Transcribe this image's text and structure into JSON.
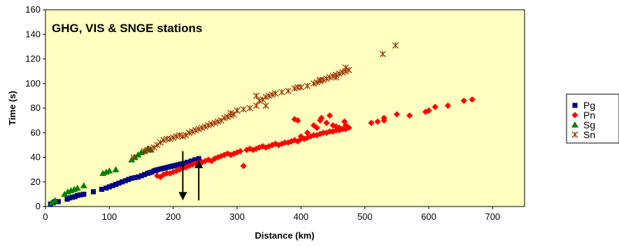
{
  "chart_data": {
    "type": "scatter",
    "title": "GHG, VIS  & SNGE stations",
    "xlabel": "Distance (km)",
    "ylabel": "Time (s)",
    "xlim": [
      0,
      750
    ],
    "ylim": [
      0,
      160
    ],
    "xticks": [
      0,
      100,
      200,
      300,
      400,
      500,
      600,
      700
    ],
    "yticks": [
      0,
      20,
      40,
      60,
      80,
      100,
      120,
      140,
      160
    ],
    "grid": false,
    "legend_position": "right",
    "plot_background": "#ffffc0",
    "series": [
      {
        "name": "Pg",
        "marker": "square",
        "color": "#000080",
        "points": [
          [
            8,
            2
          ],
          [
            12,
            3
          ],
          [
            15,
            4
          ],
          [
            20,
            4
          ],
          [
            34,
            6
          ],
          [
            38,
            7
          ],
          [
            42,
            7.5
          ],
          [
            46,
            8
          ],
          [
            50,
            9
          ],
          [
            55,
            9.5
          ],
          [
            60,
            10
          ],
          [
            75,
            12
          ],
          [
            88,
            14
          ],
          [
            95,
            15
          ],
          [
            100,
            16
          ],
          [
            105,
            17
          ],
          [
            110,
            18
          ],
          [
            115,
            19
          ],
          [
            120,
            20
          ],
          [
            125,
            21
          ],
          [
            130,
            22
          ],
          [
            135,
            23
          ],
          [
            140,
            23.5
          ],
          [
            145,
            24
          ],
          [
            150,
            25
          ],
          [
            155,
            26
          ],
          [
            160,
            27
          ],
          [
            163,
            27.5
          ],
          [
            166,
            28
          ],
          [
            170,
            29
          ],
          [
            173,
            29.5
          ],
          [
            176,
            30
          ],
          [
            180,
            30.5
          ],
          [
            184,
            31
          ],
          [
            188,
            31.5
          ],
          [
            192,
            32
          ],
          [
            196,
            32.5
          ],
          [
            200,
            33
          ],
          [
            204,
            33.5
          ],
          [
            208,
            34
          ],
          [
            212,
            34.5
          ],
          [
            216,
            35
          ],
          [
            222,
            36
          ],
          [
            228,
            37
          ],
          [
            234,
            38
          ],
          [
            240,
            39
          ]
        ]
      },
      {
        "name": "Pn",
        "marker": "diamond",
        "color": "#ff0000",
        "points": [
          [
            175,
            25
          ],
          [
            180,
            24
          ],
          [
            185,
            26
          ],
          [
            190,
            27
          ],
          [
            195,
            27
          ],
          [
            200,
            28
          ],
          [
            205,
            29
          ],
          [
            210,
            30
          ],
          [
            215,
            31
          ],
          [
            220,
            32
          ],
          [
            225,
            33
          ],
          [
            230,
            34
          ],
          [
            235,
            35
          ],
          [
            240,
            36
          ],
          [
            245,
            36
          ],
          [
            250,
            37
          ],
          [
            255,
            38
          ],
          [
            260,
            37
          ],
          [
            265,
            39
          ],
          [
            270,
            40
          ],
          [
            275,
            41
          ],
          [
            280,
            42
          ],
          [
            285,
            43
          ],
          [
            290,
            42
          ],
          [
            295,
            43
          ],
          [
            300,
            44
          ],
          [
            305,
            45
          ],
          [
            310,
            33
          ],
          [
            315,
            46
          ],
          [
            320,
            47
          ],
          [
            325,
            46
          ],
          [
            330,
            47
          ],
          [
            335,
            48
          ],
          [
            340,
            49
          ],
          [
            345,
            48
          ],
          [
            350,
            49
          ],
          [
            355,
            50
          ],
          [
            360,
            51
          ],
          [
            365,
            50
          ],
          [
            370,
            51
          ],
          [
            375,
            52
          ],
          [
            380,
            52
          ],
          [
            385,
            53
          ],
          [
            390,
            54
          ],
          [
            395,
            53
          ],
          [
            400,
            55
          ],
          [
            405,
            55
          ],
          [
            410,
            56
          ],
          [
            415,
            57
          ],
          [
            420,
            58
          ],
          [
            425,
            58
          ],
          [
            430,
            59
          ],
          [
            435,
            60
          ],
          [
            440,
            60
          ],
          [
            445,
            61
          ],
          [
            450,
            61
          ],
          [
            455,
            62
          ],
          [
            460,
            62
          ],
          [
            465,
            63
          ],
          [
            470,
            63
          ],
          [
            475,
            64
          ],
          [
            390,
            71
          ],
          [
            395,
            70
          ],
          [
            400,
            57
          ],
          [
            410,
            60
          ],
          [
            420,
            66
          ],
          [
            425,
            64
          ],
          [
            430,
            70
          ],
          [
            432,
            72
          ],
          [
            440,
            68
          ],
          [
            445,
            74
          ],
          [
            450,
            66
          ],
          [
            455,
            65
          ],
          [
            460,
            64
          ],
          [
            468,
            69
          ],
          [
            470,
            66
          ],
          [
            510,
            68
          ],
          [
            520,
            69
          ],
          [
            530,
            70
          ],
          [
            530,
            72
          ],
          [
            550,
            75
          ],
          [
            570,
            74
          ],
          [
            595,
            77
          ],
          [
            600,
            78
          ],
          [
            610,
            81
          ],
          [
            630,
            82
          ],
          [
            655,
            86
          ],
          [
            668,
            87
          ]
        ]
      },
      {
        "name": "Sg",
        "marker": "triangle",
        "color": "#008000",
        "points": [
          [
            10,
            3
          ],
          [
            15,
            5
          ],
          [
            30,
            10
          ],
          [
            35,
            12
          ],
          [
            40,
            13
          ],
          [
            45,
            14
          ],
          [
            50,
            15
          ],
          [
            60,
            17
          ],
          [
            90,
            27
          ],
          [
            95,
            28
          ],
          [
            100,
            29
          ],
          [
            110,
            30
          ],
          [
            135,
            38
          ],
          [
            140,
            40
          ],
          [
            145,
            42
          ],
          [
            150,
            44
          ],
          [
            155,
            45
          ],
          [
            160,
            47
          ],
          [
            165,
            46
          ]
        ]
      },
      {
        "name": "Sn",
        "marker": "asterisk",
        "color": "#993300",
        "points": [
          [
            138,
            40
          ],
          [
            155,
            45
          ],
          [
            160,
            46
          ],
          [
            165,
            47
          ],
          [
            170,
            48
          ],
          [
            175,
            50
          ],
          [
            180,
            52
          ],
          [
            185,
            54
          ],
          [
            190,
            55
          ],
          [
            195,
            55
          ],
          [
            200,
            56
          ],
          [
            205,
            57
          ],
          [
            210,
            58
          ],
          [
            215,
            57
          ],
          [
            220,
            58
          ],
          [
            225,
            60
          ],
          [
            230,
            61
          ],
          [
            235,
            62
          ],
          [
            240,
            63
          ],
          [
            245,
            64
          ],
          [
            250,
            65
          ],
          [
            255,
            66
          ],
          [
            260,
            67
          ],
          [
            265,
            68
          ],
          [
            270,
            69
          ],
          [
            275,
            70
          ],
          [
            280,
            72
          ],
          [
            285,
            73
          ],
          [
            290,
            74
          ],
          [
            295,
            75
          ],
          [
            300,
            78
          ],
          [
            310,
            79
          ],
          [
            320,
            80
          ],
          [
            330,
            82
          ],
          [
            335,
            86
          ],
          [
            340,
            87
          ],
          [
            345,
            89
          ],
          [
            350,
            90
          ],
          [
            355,
            91
          ],
          [
            360,
            92
          ],
          [
            370,
            93
          ],
          [
            380,
            94
          ],
          [
            390,
            96
          ],
          [
            400,
            97
          ],
          [
            410,
            98
          ],
          [
            420,
            100
          ],
          [
            425,
            101
          ],
          [
            430,
            102
          ],
          [
            435,
            103
          ],
          [
            440,
            104
          ],
          [
            445,
            105
          ],
          [
            450,
            106
          ],
          [
            455,
            107
          ],
          [
            460,
            108
          ],
          [
            465,
            109
          ],
          [
            470,
            110
          ],
          [
            475,
            111
          ],
          [
            290,
            76
          ],
          [
            300,
            78
          ],
          [
            330,
            90
          ],
          [
            345,
            82
          ],
          [
            395,
            97
          ],
          [
            430,
            103
          ],
          [
            455,
            105
          ],
          [
            470,
            113
          ],
          [
            528,
            124
          ],
          [
            548,
            131
          ]
        ]
      }
    ],
    "annotations": [
      {
        "type": "arrow",
        "direction": "down",
        "x": 215,
        "y_from": 45,
        "y_to": 5
      },
      {
        "type": "arrow",
        "direction": "up",
        "x": 240,
        "y_from": 5,
        "y_to": 38
      }
    ]
  }
}
